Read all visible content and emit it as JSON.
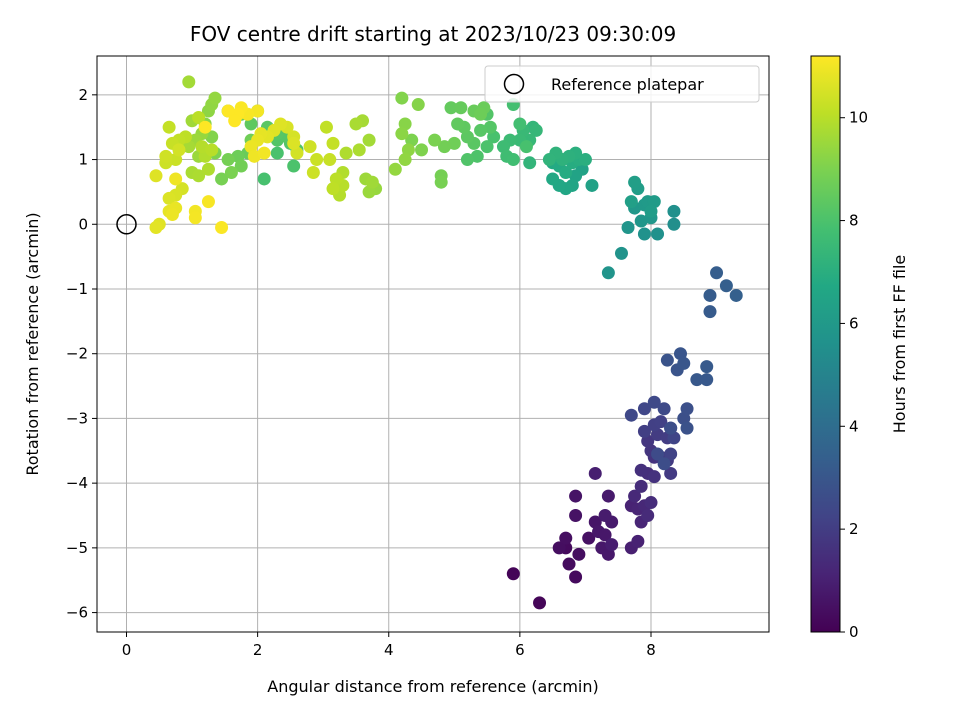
{
  "chart_data": {
    "type": "scatter",
    "title": "FOV centre drift starting at 2023/10/23 09:30:09",
    "xlabel": "Angular distance from reference (arcmin)",
    "ylabel": "Rotation from reference (arcmin)",
    "xlim": [
      -0.45,
      9.8
    ],
    "ylim": [
      -6.3,
      2.6
    ],
    "xticks": [
      0,
      2,
      4,
      6,
      8
    ],
    "yticks": [
      2,
      1,
      0,
      -1,
      -2,
      -3,
      -4,
      -5,
      -6
    ],
    "grid": true,
    "legend": {
      "placement": "top-right",
      "entries": [
        "Reference platepar"
      ]
    },
    "reference_point": {
      "x": 0,
      "y": 0
    },
    "colorbar": {
      "label": "Hours from first FF file",
      "range": [
        0,
        11.2
      ],
      "ticks": [
        0,
        2,
        4,
        6,
        8,
        10
      ],
      "colormap": "viridis"
    },
    "points": [
      [
        5.9,
        -5.4,
        0.1
      ],
      [
        6.3,
        -5.85,
        0.15
      ],
      [
        6.7,
        -5.0,
        0.3
      ],
      [
        6.85,
        -5.45,
        0.3
      ],
      [
        6.75,
        -5.25,
        0.35
      ],
      [
        6.9,
        -5.1,
        0.4
      ],
      [
        6.6,
        -5.0,
        0.4
      ],
      [
        6.7,
        -4.85,
        0.45
      ],
      [
        7.05,
        -4.85,
        0.5
      ],
      [
        6.85,
        -4.5,
        0.55
      ],
      [
        6.85,
        -4.2,
        0.6
      ],
      [
        7.15,
        -4.6,
        0.65
      ],
      [
        7.2,
        -4.75,
        0.7
      ],
      [
        7.3,
        -4.8,
        0.7
      ],
      [
        7.25,
        -5.0,
        0.75
      ],
      [
        7.35,
        -5.1,
        0.75
      ],
      [
        7.4,
        -4.6,
        0.8
      ],
      [
        7.35,
        -4.2,
        0.8
      ],
      [
        7.3,
        -4.5,
        0.85
      ],
      [
        7.4,
        -4.95,
        0.9
      ],
      [
        7.15,
        -3.85,
        0.95
      ],
      [
        7.7,
        -5.0,
        1.0
      ],
      [
        7.8,
        -4.9,
        1.05
      ],
      [
        7.7,
        -4.35,
        1.1
      ],
      [
        7.8,
        -4.4,
        1.15
      ],
      [
        7.85,
        -4.6,
        1.2
      ],
      [
        7.9,
        -4.35,
        1.25
      ],
      [
        7.75,
        -4.2,
        1.3
      ],
      [
        7.95,
        -4.5,
        1.35
      ],
      [
        8.0,
        -4.3,
        1.4
      ],
      [
        7.85,
        -4.05,
        1.45
      ],
      [
        7.95,
        -3.85,
        1.5
      ],
      [
        7.85,
        -3.8,
        1.55
      ],
      [
        8.05,
        -3.9,
        1.6
      ],
      [
        8.05,
        -3.6,
        1.65
      ],
      [
        8.0,
        -3.5,
        1.7
      ],
      [
        7.95,
        -3.35,
        1.75
      ],
      [
        8.15,
        -3.6,
        1.8
      ],
      [
        8.25,
        -3.65,
        1.85
      ],
      [
        8.3,
        -3.85,
        1.9
      ],
      [
        8.1,
        -3.25,
        1.95
      ],
      [
        8.25,
        -3.3,
        2.0
      ],
      [
        7.9,
        -3.2,
        2.05
      ],
      [
        8.05,
        -3.1,
        2.1
      ],
      [
        8.15,
        -3.05,
        2.15
      ],
      [
        8.3,
        -3.55,
        2.2
      ],
      [
        8.3,
        -3.15,
        2.25
      ],
      [
        8.35,
        -3.3,
        2.3
      ],
      [
        7.9,
        -2.85,
        2.35
      ],
      [
        7.7,
        -2.95,
        2.4
      ],
      [
        8.05,
        -2.75,
        2.45
      ],
      [
        8.2,
        -2.85,
        2.5
      ],
      [
        8.1,
        -3.55,
        2.55
      ],
      [
        8.2,
        -3.7,
        2.6
      ],
      [
        8.3,
        -3.15,
        2.65
      ],
      [
        8.5,
        -3.0,
        2.7
      ],
      [
        8.55,
        -2.85,
        2.75
      ],
      [
        8.55,
        -3.15,
        2.8
      ],
      [
        8.25,
        -2.1,
        2.85
      ],
      [
        8.4,
        -2.25,
        2.9
      ],
      [
        8.45,
        -2.0,
        2.95
      ],
      [
        8.5,
        -2.15,
        3.0
      ],
      [
        8.7,
        -2.4,
        3.05
      ],
      [
        8.85,
        -2.4,
        3.1
      ],
      [
        8.85,
        -2.2,
        3.15
      ],
      [
        8.9,
        -1.35,
        3.2
      ],
      [
        8.9,
        -1.1,
        3.25
      ],
      [
        9.0,
        -0.75,
        3.3
      ],
      [
        9.15,
        -0.95,
        3.35
      ],
      [
        9.3,
        -1.1,
        3.4
      ],
      [
        8.35,
        0.0,
        5.5
      ],
      [
        8.35,
        0.2,
        5.55
      ],
      [
        8.1,
        -0.15,
        5.6
      ],
      [
        7.9,
        -0.15,
        5.65
      ],
      [
        7.55,
        -0.45,
        5.7
      ],
      [
        7.35,
        -0.75,
        5.75
      ],
      [
        7.65,
        -0.05,
        5.8
      ],
      [
        7.85,
        0.05,
        5.85
      ],
      [
        8.0,
        0.1,
        5.9
      ],
      [
        7.75,
        0.25,
        5.95
      ],
      [
        7.9,
        0.3,
        6.0
      ],
      [
        7.95,
        0.35,
        6.05
      ],
      [
        8.05,
        0.35,
        6.1
      ],
      [
        8.0,
        0.2,
        6.15
      ],
      [
        7.8,
        0.55,
        6.2
      ],
      [
        7.75,
        0.65,
        6.25
      ],
      [
        7.7,
        0.35,
        6.3
      ],
      [
        7.1,
        0.6,
        6.4
      ],
      [
        6.95,
        0.85,
        6.45
      ],
      [
        6.85,
        0.75,
        6.5
      ],
      [
        6.8,
        0.6,
        6.55
      ],
      [
        6.7,
        0.55,
        6.6
      ],
      [
        6.6,
        0.6,
        6.65
      ],
      [
        6.5,
        0.7,
        6.7
      ],
      [
        6.5,
        0.95,
        6.75
      ],
      [
        6.6,
        0.9,
        6.8
      ],
      [
        6.7,
        0.8,
        6.85
      ],
      [
        6.8,
        0.95,
        6.9
      ],
      [
        6.9,
        1.0,
        6.95
      ],
      [
        7.0,
        1.0,
        7.0
      ],
      [
        6.85,
        1.1,
        7.05
      ],
      [
        6.75,
        1.05,
        7.1
      ],
      [
        6.65,
        1.0,
        7.15
      ],
      [
        6.55,
        1.1,
        7.2
      ],
      [
        6.45,
        1.0,
        7.25
      ],
      [
        6.15,
        0.95,
        7.3
      ],
      [
        6.2,
        1.5,
        7.35
      ],
      [
        6.25,
        1.45,
        7.4
      ],
      [
        6.15,
        1.3,
        7.45
      ],
      [
        6.05,
        1.45,
        7.5
      ],
      [
        6.0,
        1.3,
        7.55
      ],
      [
        5.85,
        1.3,
        7.6
      ],
      [
        5.75,
        1.2,
        7.65
      ],
      [
        5.8,
        1.05,
        7.7
      ],
      [
        5.9,
        1.0,
        7.75
      ],
      [
        6.0,
        1.55,
        7.8
      ],
      [
        5.9,
        1.85,
        7.85
      ],
      [
        6.1,
        1.2,
        7.9
      ],
      [
        5.6,
        1.35,
        7.95
      ],
      [
        5.5,
        1.2,
        8.0
      ],
      [
        5.35,
        1.05,
        8.05
      ],
      [
        5.2,
        1.0,
        8.1
      ],
      [
        5.5,
        1.7,
        8.15
      ],
      [
        5.55,
        1.5,
        8.2
      ],
      [
        5.4,
        1.45,
        8.25
      ],
      [
        5.3,
        1.25,
        8.3
      ],
      [
        5.2,
        1.35,
        8.35
      ],
      [
        5.15,
        1.5,
        8.4
      ],
      [
        5.05,
        1.55,
        8.45
      ],
      [
        4.95,
        1.8,
        8.5
      ],
      [
        5.1,
        1.8,
        8.55
      ],
      [
        5.3,
        1.75,
        8.6
      ],
      [
        5.45,
        1.8,
        8.65
      ],
      [
        5.4,
        1.7,
        8.7
      ],
      [
        5.0,
        1.25,
        8.75
      ],
      [
        4.85,
        1.2,
        8.8
      ],
      [
        4.8,
        0.75,
        8.85
      ],
      [
        4.8,
        0.65,
        8.9
      ],
      [
        4.7,
        1.3,
        8.95
      ],
      [
        4.35,
        1.3,
        9.0
      ],
      [
        4.5,
        1.15,
        9.05
      ],
      [
        4.2,
        1.95,
        9.1
      ],
      [
        4.45,
        1.85,
        9.15
      ],
      [
        4.25,
        1.55,
        9.2
      ],
      [
        4.2,
        1.4,
        9.25
      ],
      [
        4.3,
        1.15,
        9.3
      ],
      [
        4.25,
        1.0,
        9.35
      ],
      [
        4.1,
        0.85,
        9.4
      ],
      [
        3.8,
        0.55,
        9.45
      ],
      [
        3.7,
        0.5,
        9.5
      ],
      [
        3.65,
        0.7,
        9.55
      ],
      [
        3.75,
        0.65,
        9.6
      ],
      [
        3.7,
        1.3,
        9.65
      ],
      [
        3.6,
        1.6,
        9.7
      ],
      [
        3.5,
        1.55,
        9.75
      ],
      [
        3.55,
        1.15,
        9.8
      ],
      [
        3.35,
        1.1,
        9.85
      ],
      [
        3.3,
        0.8,
        9.9
      ],
      [
        3.25,
        0.45,
        9.95
      ],
      [
        3.3,
        0.6,
        10.0
      ],
      [
        3.2,
        0.7,
        10.05
      ],
      [
        3.15,
        0.55,
        10.1
      ],
      [
        3.05,
        1.5,
        10.15
      ],
      [
        3.15,
        1.25,
        10.2
      ],
      [
        3.1,
        1.0,
        10.25
      ],
      [
        2.9,
        1.0,
        10.3
      ],
      [
        2.85,
        0.8,
        10.35
      ],
      [
        2.8,
        1.2,
        10.4
      ],
      [
        2.6,
        1.1,
        10.45
      ],
      [
        2.55,
        1.35,
        10.5
      ],
      [
        2.45,
        1.5,
        10.55
      ],
      [
        2.55,
        1.25,
        10.6
      ],
      [
        2.35,
        1.55,
        10.65
      ],
      [
        2.25,
        1.45,
        10.7
      ],
      [
        2.15,
        1.35,
        10.75
      ],
      [
        2.05,
        1.4,
        10.8
      ],
      [
        2.0,
        1.3,
        10.85
      ],
      [
        1.9,
        1.2,
        10.9
      ],
      [
        1.95,
        1.05,
        10.95
      ],
      [
        2.1,
        1.1,
        11.0
      ],
      [
        2.0,
        1.75,
        11.05
      ],
      [
        1.85,
        1.7,
        11.1
      ],
      [
        1.75,
        1.8,
        11.15
      ],
      [
        1.7,
        1.7,
        11.2
      ],
      [
        1.55,
        1.75,
        11.25
      ],
      [
        1.65,
        1.6,
        11.3
      ]
    ],
    "points_2": [
      [
        1.55,
        1.75,
        8.5
      ],
      [
        1.75,
        1.7,
        8.45
      ],
      [
        1.9,
        1.55,
        8.4
      ],
      [
        2.0,
        1.75,
        8.35
      ],
      [
        2.15,
        1.5,
        8.3
      ],
      [
        2.3,
        1.4,
        8.25
      ],
      [
        2.45,
        1.35,
        8.2
      ],
      [
        2.3,
        1.3,
        8.15
      ],
      [
        2.5,
        1.25,
        8.1
      ],
      [
        2.6,
        1.15,
        8.05
      ],
      [
        2.55,
        0.9,
        8.0
      ],
      [
        2.3,
        1.1,
        7.95
      ],
      [
        2.1,
        0.7,
        7.9
      ],
      [
        1.7,
        1.05,
        8.7
      ],
      [
        1.9,
        1.3,
        8.75
      ],
      [
        1.55,
        1.0,
        8.85
      ],
      [
        1.45,
        0.7,
        8.9
      ],
      [
        1.6,
        0.8,
        8.95
      ],
      [
        1.75,
        0.9,
        8.8
      ],
      [
        1.85,
        1.1,
        8.6
      ],
      [
        1.35,
        1.1,
        9.0
      ],
      [
        1.3,
        1.35,
        9.1
      ],
      [
        1.2,
        1.55,
        9.2
      ],
      [
        1.25,
        1.75,
        9.3
      ],
      [
        1.3,
        1.85,
        9.35
      ],
      [
        1.35,
        1.95,
        9.4
      ],
      [
        1.15,
        1.4,
        9.45
      ],
      [
        1.1,
        1.05,
        9.5
      ],
      [
        1.05,
        1.3,
        9.55
      ],
      [
        1.0,
        1.6,
        9.6
      ],
      [
        0.95,
        2.2,
        9.65
      ],
      [
        0.95,
        1.2,
        9.7
      ],
      [
        1.0,
        0.8,
        9.75
      ],
      [
        1.1,
        0.75,
        9.8
      ],
      [
        1.25,
        0.85,
        9.85
      ],
      [
        1.2,
        1.05,
        9.9
      ],
      [
        1.15,
        1.2,
        9.95
      ],
      [
        1.3,
        1.15,
        10.0
      ],
      [
        1.1,
        1.65,
        10.05
      ],
      [
        0.9,
        1.35,
        10.1
      ],
      [
        0.8,
        1.3,
        10.15
      ],
      [
        0.65,
        1.5,
        10.2
      ],
      [
        0.7,
        1.25,
        10.25
      ],
      [
        0.75,
        1.0,
        10.3
      ],
      [
        0.6,
        0.95,
        10.35
      ],
      [
        0.6,
        1.05,
        10.4
      ],
      [
        0.8,
        1.15,
        10.45
      ],
      [
        0.85,
        0.55,
        10.5
      ],
      [
        0.75,
        0.45,
        10.55
      ],
      [
        0.65,
        0.4,
        10.6
      ],
      [
        0.45,
        0.75,
        10.65
      ],
      [
        0.5,
        0.0,
        10.7
      ],
      [
        0.45,
        -0.05,
        10.75
      ],
      [
        0.65,
        0.2,
        10.8
      ],
      [
        0.75,
        0.25,
        10.85
      ],
      [
        0.7,
        0.15,
        10.9
      ],
      [
        0.75,
        0.7,
        10.95
      ],
      [
        1.05,
        0.2,
        11.0
      ],
      [
        1.05,
        0.1,
        11.05
      ],
      [
        1.25,
        0.35,
        11.1
      ],
      [
        1.45,
        -0.05,
        11.15
      ],
      [
        1.2,
        1.5,
        11.2
      ]
    ]
  }
}
